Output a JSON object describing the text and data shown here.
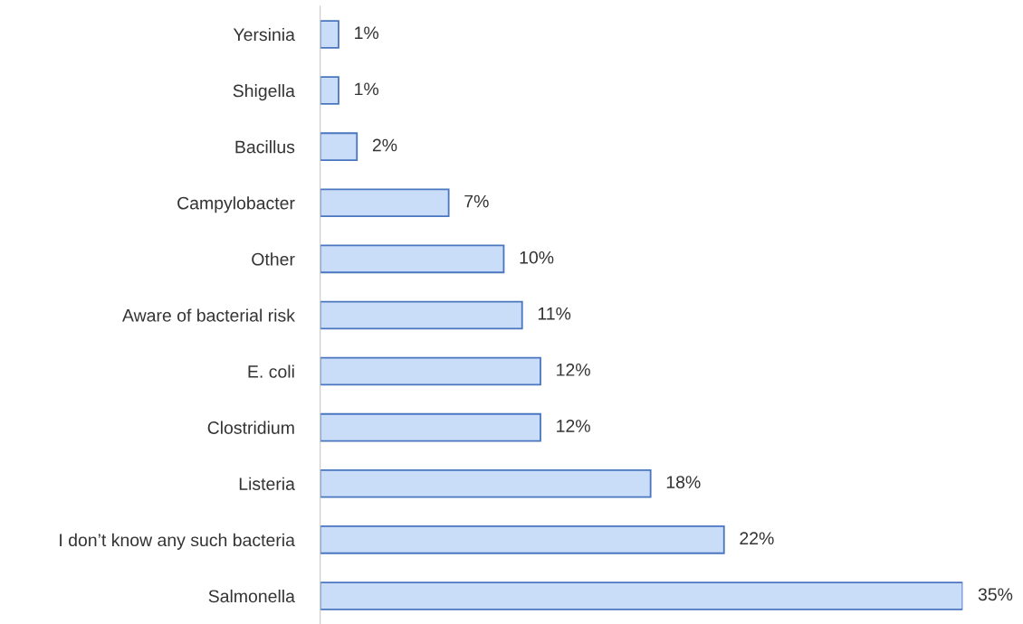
{
  "chart_data": {
    "type": "bar",
    "orientation": "horizontal",
    "categories": [
      "Yersinia",
      "Shigella",
      "Bacillus",
      "Campylobacter",
      "Other",
      "Aware of bacterial risk",
      "E. coli",
      "Clostridium",
      "Listeria",
      "I don’t know any such bacteria",
      "Salmonella"
    ],
    "values": [
      1,
      1,
      2,
      7,
      10,
      11,
      12,
      12,
      18,
      22,
      35
    ],
    "value_labels": [
      "1%",
      "1%",
      "2%",
      "7%",
      "10%",
      "11%",
      "12%",
      "12%",
      "18%",
      "22%",
      "35%"
    ],
    "color": "#c9dcf8",
    "grid": false,
    "legend": false
  }
}
